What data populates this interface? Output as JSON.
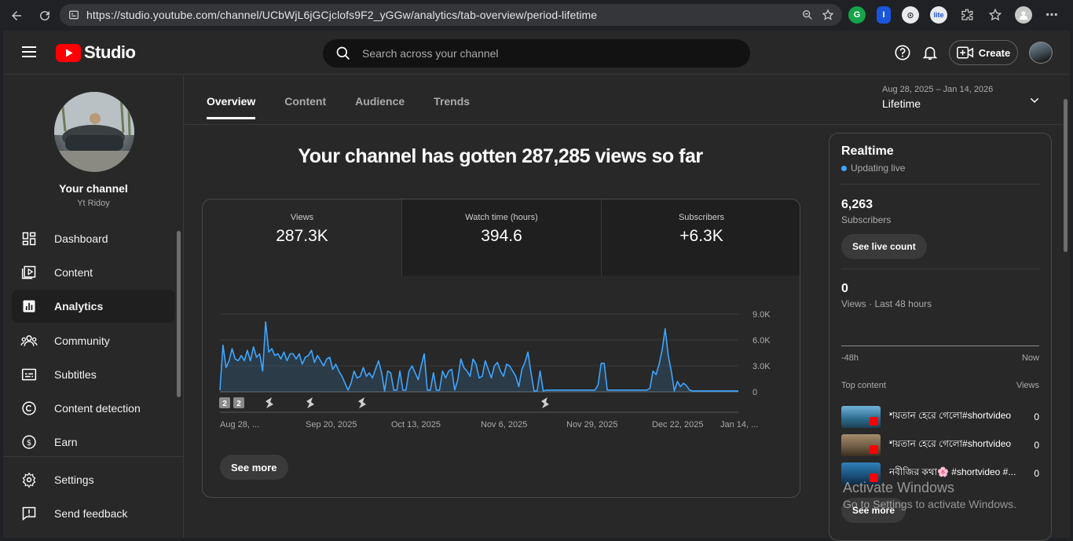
{
  "browser": {
    "url": "https://studio.youtube.com/channel/UCbWjL6jGCjclofs9F2_yGGw/analytics/tab-overview/period-lifetime"
  },
  "header": {
    "logo_text": "Studio",
    "search_placeholder": "Search across your channel",
    "create_label": "Create"
  },
  "sidebar": {
    "channel_title": "Your channel",
    "channel_name": "Yt Ridoy",
    "items": [
      {
        "label": "Dashboard",
        "icon": "dashboard-icon"
      },
      {
        "label": "Content",
        "icon": "content-icon"
      },
      {
        "label": "Analytics",
        "icon": "analytics-icon",
        "active": true
      },
      {
        "label": "Community",
        "icon": "community-icon"
      },
      {
        "label": "Subtitles",
        "icon": "subtitles-icon"
      },
      {
        "label": "Content detection",
        "icon": "copyright-icon"
      },
      {
        "label": "Earn",
        "icon": "earn-icon"
      }
    ],
    "footer_items": [
      {
        "label": "Settings",
        "icon": "settings-icon"
      },
      {
        "label": "Send feedback",
        "icon": "feedback-icon"
      }
    ]
  },
  "main": {
    "tabs": [
      "Overview",
      "Content",
      "Audience",
      "Trends"
    ],
    "active_tab": "Overview",
    "date_range": "Aug 28, 2025 – Jan 14, 2026",
    "date_label": "Lifetime",
    "headline": "Your channel has gotten 287,285 views so far",
    "metrics": [
      {
        "label": "Views",
        "value": "287.3K"
      },
      {
        "label": "Watch time (hours)",
        "value": "394.6"
      },
      {
        "label": "Subscribers",
        "value": "+6.3K"
      }
    ],
    "see_more": "See more"
  },
  "chart_data": {
    "type": "area",
    "title": "",
    "xlabel": "",
    "ylabel": "",
    "x_tick_labels": [
      "Aug 28, ...",
      "Sep 20, 2025",
      "Oct 13, 2025",
      "Nov 6, 2025",
      "Nov 29, 2025",
      "Dec 22, 2025",
      "Jan 14, ..."
    ],
    "y_tick_labels": [
      "9.0K",
      "6.0K",
      "3.0K",
      "0"
    ],
    "ylim": [
      0,
      9000
    ],
    "series": [
      {
        "values": [
          200,
          5400,
          2800,
          3600,
          5000,
          3800,
          3600,
          4200,
          3600,
          4800,
          3600,
          5200,
          4000,
          4400,
          2400,
          8100,
          4600,
          5000,
          4200,
          4400,
          3800,
          4600,
          3600,
          4400,
          4400,
          3800,
          4400,
          3200,
          4000,
          4200,
          4800,
          3400,
          4200,
          3600,
          3000,
          3800,
          4000,
          2600,
          3200,
          2400,
          1800,
          1000,
          200,
          1000,
          2400,
          1600,
          1800,
          2800,
          1800,
          2200,
          1600,
          2600,
          3600,
          2200,
          100,
          2400,
          2200,
          200,
          200,
          2400,
          200,
          200,
          2400,
          3000,
          2200,
          1400,
          3000,
          4400,
          200,
          200,
          2200,
          200,
          200,
          2400,
          1600,
          2400,
          2600,
          200,
          1400,
          3800,
          2800,
          2400,
          1800,
          3800,
          3200,
          1600,
          1800,
          3600,
          2600,
          1600,
          3000,
          3400,
          2400,
          1800,
          3200,
          3000,
          2400,
          1800,
          600,
          2600,
          3400,
          4600,
          2200,
          100,
          100,
          2400,
          100,
          200,
          200,
          200,
          200,
          200,
          200,
          200,
          200,
          200,
          200,
          200,
          200,
          200,
          200,
          200,
          200,
          200,
          800,
          3300,
          3300,
          200,
          200,
          200,
          200,
          200,
          200,
          200,
          200,
          200,
          200,
          200,
          200,
          200,
          200,
          400,
          2400,
          2000,
          3200,
          4800,
          7300,
          4200,
          2400,
          100,
          1200,
          600,
          1000,
          700,
          200,
          100,
          100,
          100,
          100,
          100,
          100,
          100,
          100,
          100,
          100,
          100,
          100,
          100,
          100,
          100,
          100
        ]
      }
    ],
    "markers": [
      {
        "kind": "number",
        "text": "2"
      },
      {
        "kind": "number",
        "text": "2"
      },
      {
        "kind": "shorts"
      },
      {
        "kind": "shorts"
      },
      {
        "kind": "shorts"
      },
      {
        "kind": "shorts"
      }
    ],
    "line_color": "#3ea6ff"
  },
  "realtime": {
    "title": "Realtime",
    "live_text": "Updating live",
    "subscribers_value": "6,263",
    "subscribers_label": "Subscribers",
    "live_count_btn": "See live count",
    "views_value": "0",
    "views_label": "Views · Last 48 hours",
    "axis_start": "-48h",
    "axis_end": "Now",
    "top_content_label": "Top content",
    "top_content_col": "Views",
    "top_content": [
      {
        "title": "শয়তান হেরে গেলো#shortvideo",
        "views": "0"
      },
      {
        "title": "শয়তান হেরে গেলো#shortvideo",
        "views": "0"
      },
      {
        "title": "নবীজির কথা🌸 #shortvideo #...",
        "views": "0"
      }
    ],
    "see_more": "See more"
  },
  "watermark": {
    "line1": "Activate Windows",
    "line2": "Go to Settings to activate Windows."
  }
}
